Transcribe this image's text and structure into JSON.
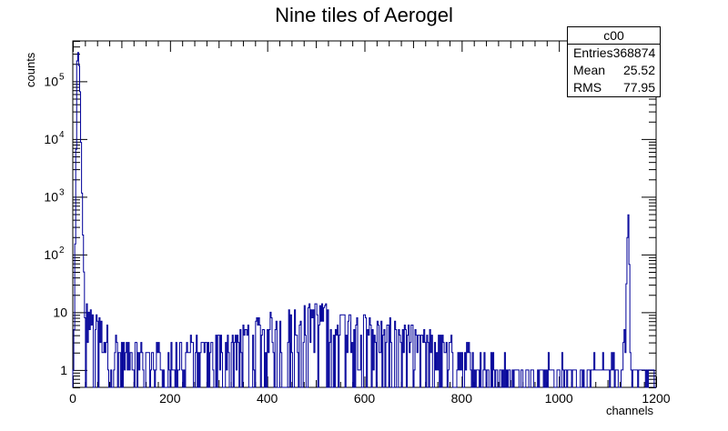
{
  "chart_data": {
    "type": "histogram",
    "title": "Nine tiles of Aerogel",
    "xlabel": "channels",
    "ylabel": "counts",
    "xlim": [
      0,
      1200
    ],
    "ylim": [
      0.5,
      500000
    ],
    "yscale": "log",
    "x_ticks": [
      "0",
      "200",
      "400",
      "600",
      "800",
      "1000",
      "1200"
    ],
    "y_ticks": [
      "1",
      "10",
      "10^2",
      "10^3",
      "10^4",
      "10^5"
    ],
    "line_color": "#000099",
    "stats_box": {
      "name": "c00",
      "rows": [
        {
          "label": "Entries",
          "value": "368874"
        },
        {
          "label": "Mean",
          "value": "25.52"
        },
        {
          "label": "RMS",
          "value": "77.95"
        }
      ]
    },
    "peaks": [
      {
        "x": 0,
        "y": 1
      },
      {
        "x": 3,
        "y": 3
      },
      {
        "x": 6,
        "y": 1000
      },
      {
        "x": 9,
        "y": 250000
      },
      {
        "x": 12,
        "y": 300000
      },
      {
        "x": 15,
        "y": 60000
      },
      {
        "x": 18,
        "y": 3000
      },
      {
        "x": 21,
        "y": 200
      },
      {
        "x": 25,
        "y": 15
      },
      {
        "x": 30,
        "y": 9
      },
      {
        "x": 40,
        "y": 7
      },
      {
        "x": 60,
        "y": 5
      },
      {
        "x": 100,
        "y": 2
      },
      {
        "x": 200,
        "y": 2
      },
      {
        "x": 300,
        "y": 3
      },
      {
        "x": 400,
        "y": 6
      },
      {
        "x": 500,
        "y": 10
      },
      {
        "x": 600,
        "y": 6
      },
      {
        "x": 700,
        "y": 4
      },
      {
        "x": 800,
        "y": 2
      },
      {
        "x": 900,
        "y": 1
      },
      {
        "x": 1000,
        "y": 1
      },
      {
        "x": 1100,
        "y": 1
      },
      {
        "x": 1130,
        "y": 1
      },
      {
        "x": 1138,
        "y": 10
      },
      {
        "x": 1141,
        "y": 200
      },
      {
        "x": 1143,
        "y": 500
      },
      {
        "x": 1145,
        "y": 60
      },
      {
        "x": 1147,
        "y": 3
      }
    ]
  }
}
